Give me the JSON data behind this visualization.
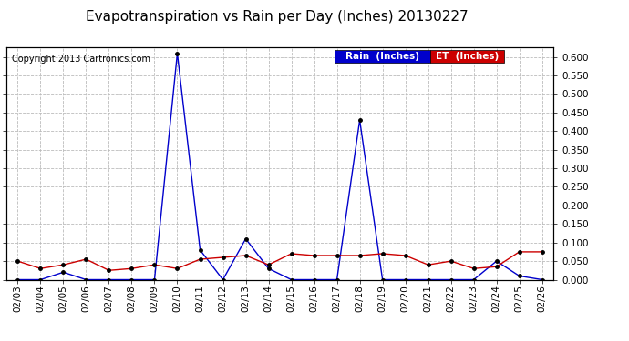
{
  "title": "Evapotranspiration vs Rain per Day (Inches) 20130227",
  "copyright": "Copyright 2013 Cartronics.com",
  "dates": [
    "02/03",
    "02/04",
    "02/05",
    "02/06",
    "02/07",
    "02/08",
    "02/09",
    "02/10",
    "02/11",
    "02/12",
    "02/13",
    "02/14",
    "02/15",
    "02/16",
    "02/17",
    "02/18",
    "02/19",
    "02/20",
    "02/21",
    "02/22",
    "02/23",
    "02/24",
    "02/25",
    "02/26"
  ],
  "rain": [
    0.0,
    0.0,
    0.02,
    0.0,
    0.0,
    0.0,
    0.0,
    0.61,
    0.08,
    0.0,
    0.11,
    0.03,
    0.0,
    0.0,
    0.0,
    0.43,
    0.0,
    0.0,
    0.0,
    0.0,
    0.0,
    0.05,
    0.01,
    0.0
  ],
  "et": [
    0.05,
    0.03,
    0.04,
    0.055,
    0.025,
    0.03,
    0.04,
    0.03,
    0.055,
    0.06,
    0.065,
    0.04,
    0.07,
    0.065,
    0.065,
    0.065,
    0.07,
    0.065,
    0.04,
    0.05,
    0.03,
    0.035,
    0.075,
    0.075
  ],
  "rain_color": "#0000cc",
  "et_color": "#cc0000",
  "ylim": [
    0,
    0.625
  ],
  "yticks": [
    0.0,
    0.05,
    0.1,
    0.15,
    0.2,
    0.25,
    0.3,
    0.35,
    0.4,
    0.45,
    0.5,
    0.55,
    0.6
  ],
  "grid_color": "#bbbbbb",
  "background_color": "#ffffff",
  "legend_rain_bg": "#0000cc",
  "legend_et_bg": "#cc0000",
  "title_fontsize": 11,
  "copyright_fontsize": 7,
  "tick_fontsize": 7.5,
  "legend_fontsize": 7.5
}
